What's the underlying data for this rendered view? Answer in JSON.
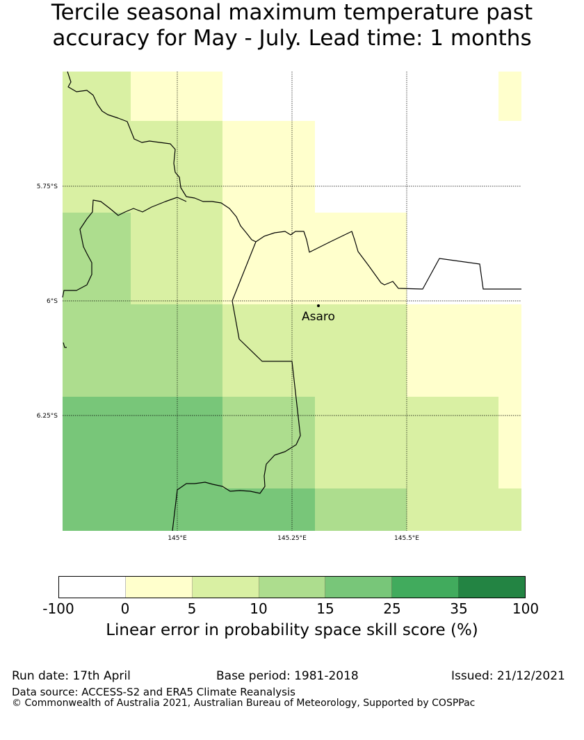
{
  "title": {
    "line1": "Tercile seasonal maximum temperature past",
    "line2": "accuracy for May - July. Lead time: 1 months"
  },
  "map": {
    "lat_labels": [
      "5.75°S",
      "6°S",
      "6.25°S"
    ],
    "lon_labels": [
      "145°E",
      "145.25°E",
      "145.5°E"
    ],
    "place": {
      "name": "Asaro"
    }
  },
  "colorbar": {
    "label": "Linear error in probability space skill score (%)",
    "ticks": [
      "-100",
      "0",
      "5",
      "10",
      "15",
      "25",
      "35",
      "100"
    ],
    "colors": [
      "#ffffff",
      "#ffffcc",
      "#d9f0a3",
      "#addd8e",
      "#78c679",
      "#41ab5d",
      "#238443"
    ]
  },
  "footer": {
    "run_date": "Run date: 17th April",
    "base_period": "Base period: 1981-2018",
    "issued": "Issued: 21/12/2021",
    "data_source": "Data source: ACCESS-S2 and ERA5 Climate Reanalysis",
    "copyright": "© Commonwealth of Australia 2021, Australian Bureau of Meteorology, Supported by COSPPac"
  }
}
